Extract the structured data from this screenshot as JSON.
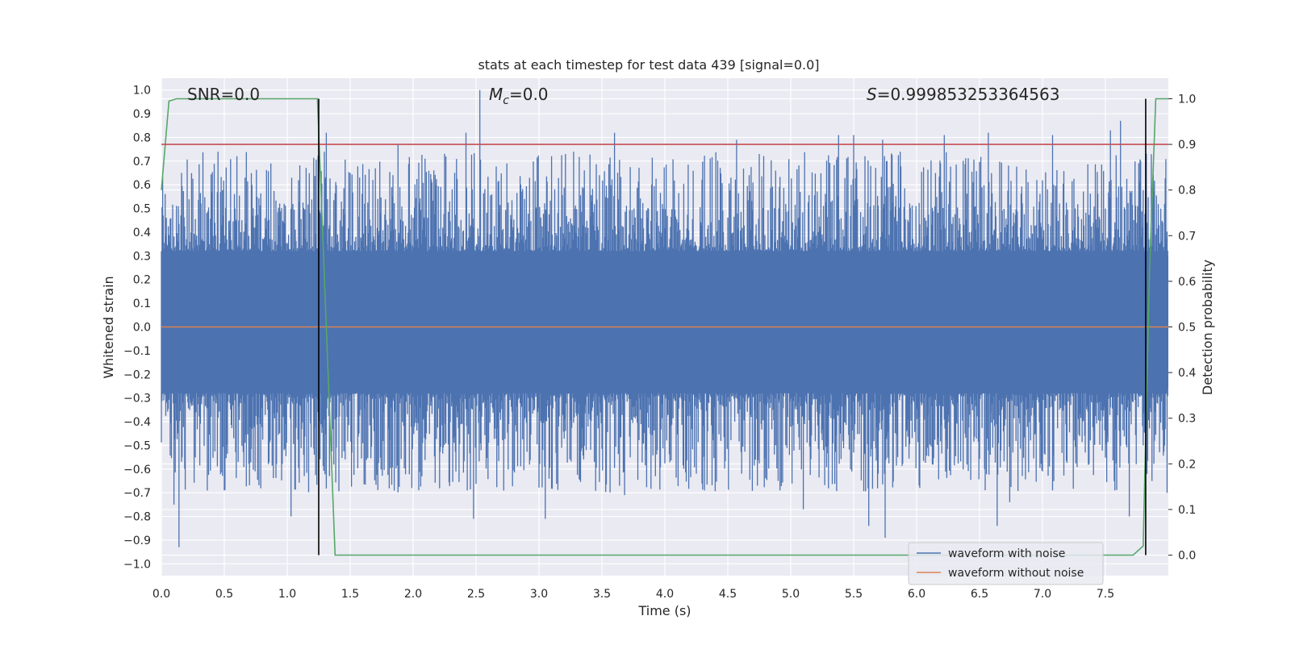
{
  "chart_data": {
    "type": "line",
    "title": "stats at each timestep for test data 439 [signal=0.0]",
    "xlabel": "Time (s)",
    "ylabel_left": "Whitened strain",
    "ylabel_right": "Detection probability",
    "xlim": [
      0.0,
      8.0
    ],
    "ylim_left": [
      -1.05,
      1.05
    ],
    "ylim_right": [
      -0.045,
      1.045
    ],
    "x_ticks": [
      "0.0",
      "0.5",
      "1.0",
      "1.5",
      "2.0",
      "2.5",
      "3.0",
      "3.5",
      "4.0",
      "4.5",
      "5.0",
      "5.5",
      "6.0",
      "6.5",
      "7.0",
      "7.5"
    ],
    "y_ticks_left": [
      "1.0",
      "0.9",
      "0.8",
      "0.7",
      "0.6",
      "0.5",
      "0.4",
      "0.3",
      "0.2",
      "0.1",
      "0.0",
      "−0.1",
      "−0.2",
      "−0.3",
      "−0.4",
      "−0.5",
      "−0.6",
      "−0.7",
      "−0.8",
      "−0.9",
      "−1.0"
    ],
    "y_ticks_right": [
      "1.0",
      "0.9",
      "0.8",
      "0.7",
      "0.6",
      "0.5",
      "0.4",
      "0.3",
      "0.2",
      "0.1",
      "0.0"
    ],
    "grid": true,
    "legend_position": "bottom-right",
    "annotations": {
      "snr": "SNR=0.0",
      "mc_symbol": "M",
      "mc_sub": "c",
      "mc_value": "=0.0",
      "s_symbol": "S",
      "s_value": "=0.999853253364563"
    },
    "series": [
      {
        "name": "waveform with noise",
        "color": "#4c72b0",
        "axis": "left",
        "description_values": {
          "envelope_min": -0.93,
          "envelope_max": 1.0,
          "dense_band": [
            -0.38,
            0.42
          ]
        },
        "peaks": [
          [
            0.1,
            -0.75
          ],
          [
            0.14,
            -0.93
          ],
          [
            0.16,
            0.65
          ],
          [
            0.45,
            0.74
          ],
          [
            0.5,
            -0.69
          ],
          [
            0.87,
            0.69
          ],
          [
            1.03,
            -0.8
          ],
          [
            1.31,
            0.82
          ],
          [
            1.56,
            -0.57
          ],
          [
            1.88,
            0.77
          ],
          [
            2.15,
            0.61
          ],
          [
            2.42,
            0.82
          ],
          [
            2.48,
            -0.81
          ],
          [
            2.53,
            1.0
          ],
          [
            2.83,
            -0.58
          ],
          [
            3.05,
            -0.81
          ],
          [
            3.22,
            -0.12
          ],
          [
            3.6,
            0.82
          ],
          [
            3.68,
            -0.71
          ],
          [
            4.57,
            0.79
          ],
          [
            4.9,
            -0.65
          ],
          [
            5.1,
            -0.77
          ],
          [
            5.38,
            0.81
          ],
          [
            5.5,
            0.81
          ],
          [
            5.62,
            -0.84
          ],
          [
            5.73,
            0.79
          ],
          [
            5.75,
            -0.89
          ],
          [
            6.22,
            0.81
          ],
          [
            6.57,
            0.82
          ],
          [
            6.64,
            -0.84
          ],
          [
            6.74,
            -0.74
          ],
          [
            7.08,
            0.81
          ],
          [
            7.54,
            0.83
          ],
          [
            7.62,
            0.87
          ],
          [
            7.69,
            -0.8
          ],
          [
            7.78,
            0.7
          ],
          [
            7.99,
            -0.7
          ]
        ]
      },
      {
        "name": "waveform without noise",
        "color": "#dd8452",
        "axis": "left",
        "x": [
          0.0,
          8.0
        ],
        "y": [
          0.0,
          0.0
        ]
      },
      {
        "name": "",
        "color": "#55a868",
        "axis": "right",
        "x": [
          0.0,
          0.06,
          0.12,
          1.24,
          1.31,
          1.38,
          7.72,
          7.8,
          7.85,
          7.9,
          8.0
        ],
        "y": [
          0.8,
          0.995,
          1.0,
          1.0,
          0.5,
          0.0,
          0.0,
          0.02,
          0.62,
          1.0,
          1.0
        ]
      },
      {
        "name": "",
        "color": "#c44e52",
        "axis": "right",
        "x": [
          0.0,
          8.0
        ],
        "y": [
          0.9,
          0.9
        ]
      }
    ],
    "vertical_lines": [
      {
        "x": 1.25,
        "y_from": 0.0,
        "y_to": 1.0,
        "color": "#000000"
      },
      {
        "x": 7.82,
        "y_from": 0.0,
        "y_to": 1.0,
        "color": "#000000"
      }
    ]
  }
}
